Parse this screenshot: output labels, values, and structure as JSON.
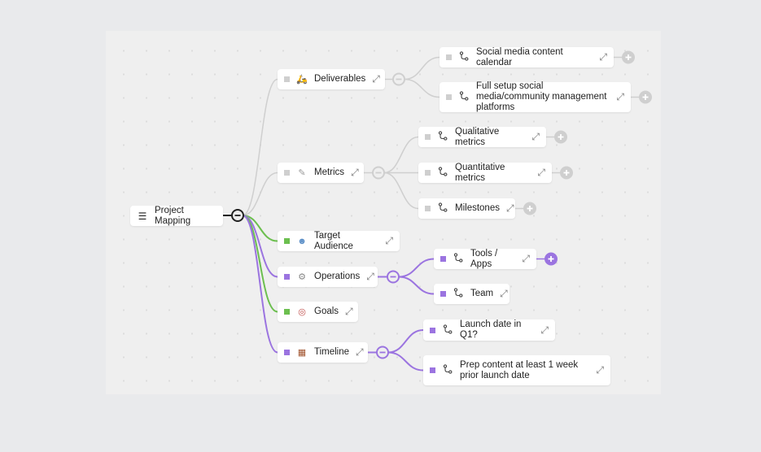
{
  "colors": {
    "gray": "#cfcfcf",
    "green": "#6cbf4f",
    "purple": "#9b74e0",
    "root": "#222222"
  },
  "root": {
    "label": "Project Mapping",
    "icon": "list-icon"
  },
  "branches": [
    {
      "label": "Deliverables",
      "icon": "scooter-icon",
      "color": "gray",
      "collapsible": true,
      "children": [
        {
          "label": "Social media content calendar",
          "add": "gray"
        },
        {
          "label": "Full setup social media/community management platforms",
          "add": "gray"
        }
      ]
    },
    {
      "label": "Metrics",
      "icon": "ruler-icon",
      "color": "gray",
      "collapsible": true,
      "children": [
        {
          "label": "Qualitative metrics",
          "add": "gray"
        },
        {
          "label": "Quantitative metrics",
          "add": "gray"
        },
        {
          "label": "Milestones",
          "add": "gray"
        }
      ]
    },
    {
      "label": "Target Audience",
      "icon": "people-icon",
      "color": "green",
      "children": []
    },
    {
      "label": "Operations",
      "icon": "gear-icon",
      "color": "purple",
      "collapsible": true,
      "children": [
        {
          "label": "Tools / Apps",
          "add": "purple"
        },
        {
          "label": "Team"
        }
      ]
    },
    {
      "label": "Goals",
      "icon": "target-icon",
      "color": "green",
      "children": []
    },
    {
      "label": "Timeline",
      "icon": "calendar-icon",
      "color": "purple",
      "collapsible": true,
      "children": [
        {
          "label": "Launch date in Q1?"
        },
        {
          "label": "Prep content at least 1 week prior launch date"
        }
      ]
    }
  ]
}
